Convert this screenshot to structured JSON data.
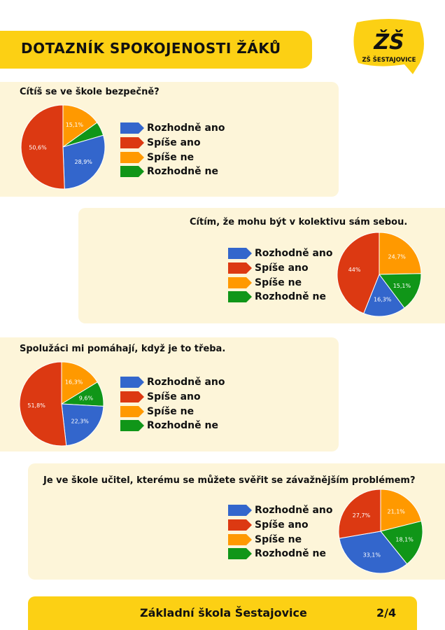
{
  "header": {
    "title": "DOTAZNÍK SPOKOJENOSTI ŽÁKŮ"
  },
  "logo": {
    "monogram": "ŽŠ",
    "name": "ZŠ ŠESTAJOVICE"
  },
  "colors": {
    "yellow": "#fcd014",
    "card_bg": "#fdf5d9",
    "rozhodne_ano": "#3366cc",
    "spise_ano": "#dc3912",
    "spise_ne": "#ff9900",
    "rozhodne_ne": "#109618"
  },
  "legend": [
    "Rozhodně ano",
    "Spíše ano",
    "Spíše ne",
    "Rozhodně ne"
  ],
  "chart_data": [
    {
      "type": "pie",
      "question": "Cítíš se ve škole bezpečně?",
      "categories": [
        "Rozhodně ano",
        "Spíše ano",
        "Spíše ne",
        "Rozhodně ne"
      ],
      "values": [
        28.9,
        50.6,
        15.1,
        5.4
      ],
      "labels": [
        "28,9%",
        "50,6%",
        "15,1%",
        ""
      ]
    },
    {
      "type": "pie",
      "question": "Cítím, že mohu být v kolektivu sám sebou.",
      "categories": [
        "Rozhodně ano",
        "Spíše ano",
        "Spíše ne",
        "Rozhodně ne"
      ],
      "values": [
        16.3,
        44,
        24.7,
        15.1
      ],
      "labels": [
        "16,3%",
        "44%",
        "24,7%",
        "15,1%"
      ]
    },
    {
      "type": "pie",
      "question": "Spolužáci mi pomáhají, když je to třeba.",
      "categories": [
        "Rozhodně ano",
        "Spíše ano",
        "Spíše ne",
        "Rozhodně ne"
      ],
      "values": [
        22.3,
        51.8,
        16.3,
        9.6
      ],
      "labels": [
        "22,3%",
        "51,8%",
        "16,3%",
        "9,6%"
      ]
    },
    {
      "type": "pie",
      "question": "Je ve škole učitel, kterému se můžete svěřit se závažnějším problémem?",
      "categories": [
        "Rozhodně ano",
        "Spíše ano",
        "Spíše ne",
        "Rozhodně ne"
      ],
      "values": [
        33.1,
        27.7,
        21.1,
        18.1
      ],
      "labels": [
        "33,1%",
        "27,7%",
        "21,1%",
        "18,1%"
      ]
    }
  ],
  "footer": {
    "school": "Základní škola Šestajovice",
    "page": "2/4"
  }
}
